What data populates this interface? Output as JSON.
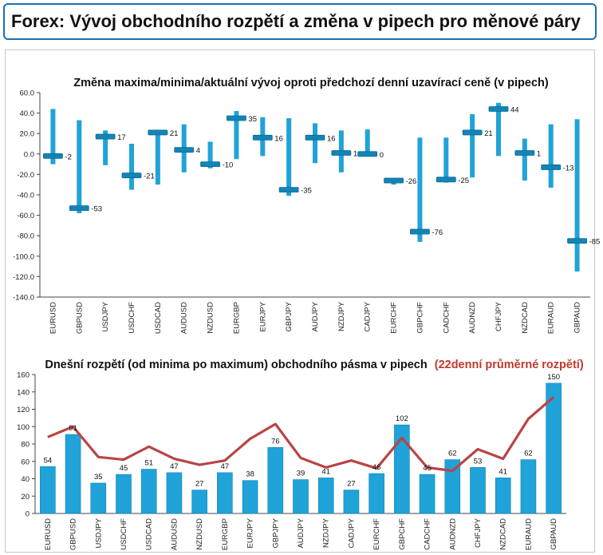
{
  "header": {
    "title": "Forex: Vývoj obchodního rozpětí a změna v pipech pro měnové páry"
  },
  "colors": {
    "bar": "#1fa3d9",
    "bar_dark": "#1583b5",
    "avg_line": "#b84545",
    "header_border": "#1a6fb5"
  },
  "chart_data": [
    {
      "type": "bar",
      "title": "Změna maxima/minima/aktuální vývoj oproti předchozí denní uzavírací ceně (v pipech)",
      "categories": [
        "EURUSD",
        "GBPUSD",
        "USDJPY",
        "USDCHF",
        "USDCAD",
        "AUDUSD",
        "NZDUSD",
        "EURGBP",
        "EURJPY",
        "GBPJPY",
        "AUDJPY",
        "NZDJPY",
        "CADJPY",
        "EURCHF",
        "GBPCHF",
        "CADCHF",
        "AUDNZD",
        "CHFJPY",
        "NZDCAD",
        "EURAUD",
        "GBPAUD"
      ],
      "series": [
        {
          "name": "",
          "role": "high",
          "values": [
            44,
            33,
            23,
            10,
            22,
            29,
            12,
            42,
            36,
            35,
            30,
            23,
            24,
            -24,
            16,
            16,
            39,
            50,
            15,
            29,
            34
          ]
        },
        {
          "name": "",
          "role": "low",
          "values": [
            -10,
            -58,
            -11,
            -35,
            -30,
            -18,
            -14,
            -5,
            -2,
            -41,
            -9,
            -18,
            0,
            -30,
            -86,
            -28,
            -23,
            -2,
            -26,
            -33,
            -115
          ]
        },
        {
          "name": "",
          "role": "current",
          "values": [
            -2,
            -53,
            17,
            -21,
            21,
            4,
            -10,
            35,
            16,
            -35,
            16,
            1,
            0,
            -26,
            -76,
            -25,
            21,
            44,
            1,
            -13,
            -85
          ]
        }
      ],
      "data_labels": [
        "-2",
        "-53",
        "17",
        "-21",
        "21",
        "4",
        "-10",
        "35",
        "16",
        "-35",
        "16",
        "1",
        "0",
        "-26",
        "-76",
        "-25",
        "21",
        "44",
        "1",
        "-13",
        "-85"
      ],
      "y_tick_labels": [
        "60.0",
        "40.0",
        "20.0",
        "0.0",
        "-20.0",
        "-40.0",
        "-60.0",
        "-80.0",
        "-100.0",
        "-120.0",
        "-140.0"
      ],
      "ylim": [
        -140,
        60
      ],
      "grid": false,
      "legend": "none"
    },
    {
      "type": "bar",
      "title": "Dnešní rozpětí (od minima po maximum) obchodního pásma v pipech",
      "title_suffix": "(22denní průměrné rozpětí)",
      "categories": [
        "EURUSD",
        "GBPUSD",
        "USDJPY",
        "USDCHF",
        "USDCAD",
        "AUDUSD",
        "NZDUSD",
        "EURGBP",
        "EURJPY",
        "GBPJPY",
        "AUDJPY",
        "NZDJPY",
        "CADJPY",
        "EURCHF",
        "GBPCHF",
        "CADCHF",
        "AUDNZD",
        "CHFJPY",
        "NZDCAD",
        "EURAUD",
        "GBPAUD"
      ],
      "series": [
        {
          "name": "",
          "role": "range",
          "values": [
            54,
            91,
            35,
            45,
            51,
            47,
            27,
            47,
            38,
            76,
            39,
            41,
            27,
            46,
            102,
            45,
            62,
            53,
            41,
            62,
            150
          ]
        },
        {
          "name": "",
          "role": "average_22d",
          "values": [
            88,
            100,
            65,
            62,
            77,
            63,
            56,
            61,
            86,
            103,
            64,
            53,
            61,
            52,
            87,
            53,
            49,
            74,
            63,
            109,
            134
          ]
        }
      ],
      "data_labels": [
        "54",
        "91",
        "35",
        "45",
        "51",
        "47",
        "27",
        "47",
        "38",
        "76",
        "39",
        "41",
        "27",
        "46",
        "102",
        "45",
        "62",
        "53",
        "41",
        "62",
        "150"
      ],
      "y_tick_labels": [
        "160",
        "140",
        "120",
        "100",
        "80",
        "60",
        "40",
        "20",
        "0"
      ],
      "ylim": [
        0,
        160
      ],
      "grid": false,
      "legend": "none"
    }
  ]
}
